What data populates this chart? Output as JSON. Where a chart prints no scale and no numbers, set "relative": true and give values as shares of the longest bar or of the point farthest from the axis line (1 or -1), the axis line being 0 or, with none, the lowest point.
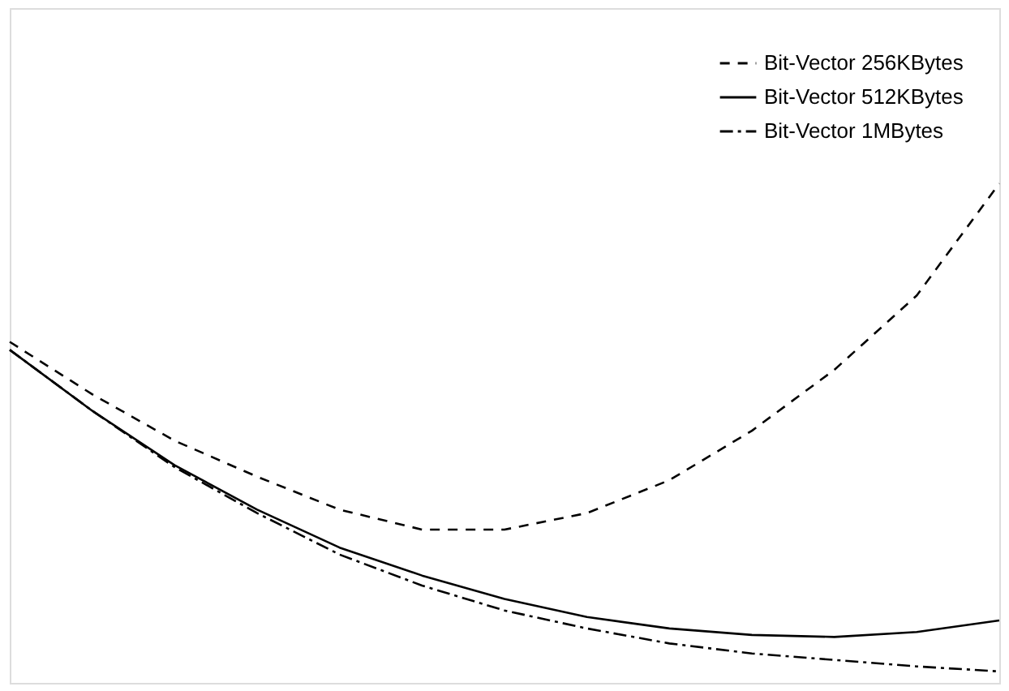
{
  "chart_data": {
    "type": "line",
    "relative": true,
    "legend": "top right",
    "categories": [
      null,
      null,
      null,
      null,
      null,
      null,
      null,
      null,
      null,
      null,
      null,
      null,
      null
    ],
    "series": [
      {
        "name": "Bit-Vector 256KBytes",
        "color": "#000000",
        "line_style": "dashed",
        "values": [
          0.683,
          0.578,
          0.485,
          0.413,
          0.347,
          0.307,
          0.307,
          0.34,
          0.406,
          0.505,
          0.627,
          0.776,
          1
        ]
      },
      {
        "name": "Bit-Vector 512KBytes",
        "color": "#000000",
        "line_style": "solid",
        "values": [
          0.667,
          0.545,
          0.436,
          0.347,
          0.271,
          0.215,
          0.168,
          0.132,
          0.109,
          0.096,
          0.092,
          0.102,
          0.125
        ]
      },
      {
        "name": "Bit-Vector 1MBytes",
        "color": "#000000",
        "line_style": "dashdot",
        "values": [
          0.667,
          0.545,
          0.432,
          0.34,
          0.257,
          0.195,
          0.145,
          0.109,
          0.079,
          0.059,
          0.046,
          0.033,
          0.023
        ]
      }
    ]
  }
}
